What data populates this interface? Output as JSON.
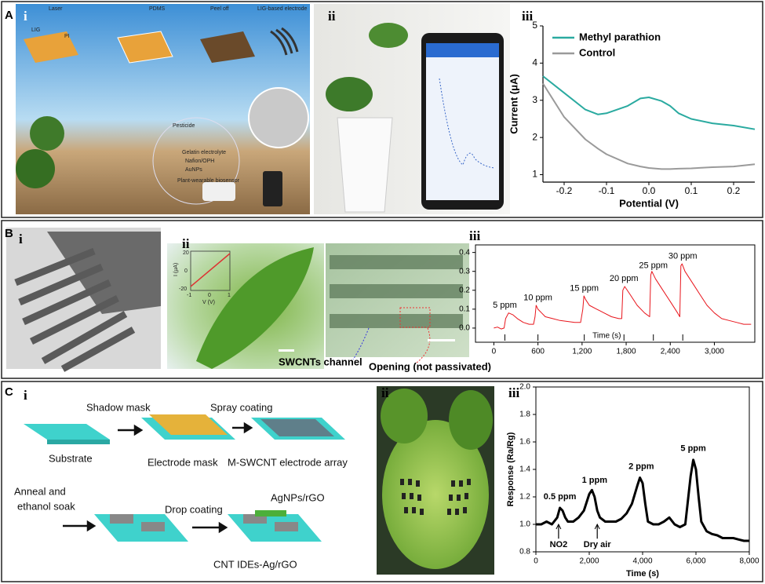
{
  "figure": {
    "panels": [
      {
        "label": "A",
        "subs": [
          "i",
          "ii",
          "iii"
        ]
      },
      {
        "label": "B",
        "subs": [
          "i",
          "ii",
          "iii"
        ]
      },
      {
        "label": "C",
        "subs": [
          "i",
          "ii",
          "iii"
        ]
      }
    ],
    "a_i": [
      "Laser",
      "PDMS",
      "Peel off",
      "LIG-based electrode",
      "LIG",
      "PI",
      "Pesticide",
      "Gelatin electrolyte",
      "Nafion/OPH",
      "AuNPs",
      "Plant-wearable biosensor"
    ],
    "b_ii": {
      "inset": {
        "y_ticks": [
          "20",
          "0",
          "-20"
        ],
        "x_ticks": [
          "-1",
          "0",
          "1"
        ],
        "ylabel": "I (μA)",
        "xlabel": "V (V)"
      },
      "labels": [
        "SWCNTs channel",
        "Opening (not passivated)"
      ]
    },
    "c_i": [
      "Shadow mask",
      "Spray coating",
      "Substrate",
      "Electrode mask",
      "M-SWCNT electrode array",
      "Anneal and",
      "ethanol soak",
      "Drop coating",
      "AgNPs/rGO",
      "CNT IDEs-Ag/rGO"
    ]
  },
  "chart_data": [
    {
      "type": "line",
      "xlabel": "Potential (V)",
      "ylabel": "Current (μA)",
      "x": [
        -0.25,
        -0.2,
        -0.15,
        -0.12,
        -0.1,
        -0.05,
        -0.02,
        0,
        0.03,
        0.05,
        0.07,
        0.1,
        0.15,
        0.2,
        0.25
      ],
      "series": [
        {
          "name": "Methyl parathion",
          "color": "#2aaaa0",
          "values": [
            3.65,
            3.2,
            2.75,
            2.62,
            2.65,
            2.85,
            3.05,
            3.08,
            2.98,
            2.85,
            2.65,
            2.5,
            2.38,
            2.32,
            2.22
          ]
        },
        {
          "name": "Control",
          "color": "#9a9a9a",
          "values": [
            3.45,
            2.55,
            1.95,
            1.7,
            1.55,
            1.3,
            1.22,
            1.18,
            1.15,
            1.15,
            1.16,
            1.17,
            1.2,
            1.22,
            1.28
          ]
        }
      ],
      "xlim": [
        -0.25,
        0.25
      ],
      "xticks": [
        -0.2,
        -0.1,
        {
          "value": 0,
          "label": "0.0"
        },
        0.1,
        0.2
      ],
      "ylim": [
        0.8,
        5
      ],
      "yticks": [
        1,
        2,
        3,
        4,
        5
      ],
      "legend": "upper left"
    },
    {
      "type": "line",
      "xlabel": "Time (s)",
      "x": [
        0,
        50,
        100,
        140,
        160,
        200,
        260,
        320,
        400,
        480,
        540,
        560,
        575,
        600,
        650,
        700,
        800,
        900,
        1000,
        1100,
        1180,
        1210,
        1225,
        1250,
        1300,
        1400,
        1500,
        1600,
        1700,
        1740,
        1755,
        1780,
        1850,
        1950,
        2050,
        2120,
        2135,
        2150,
        2200,
        2300,
        2400,
        2500,
        2530,
        2545,
        2560,
        2600,
        2700,
        2800,
        2900,
        3000,
        3100,
        3200,
        3300,
        3400,
        3500
      ],
      "series": [
        {
          "color": "#e8141b",
          "values": [
            0,
            0.005,
            -0.005,
            0,
            0.05,
            0.08,
            0.07,
            0.05,
            0.03,
            0.02,
            0.02,
            0.06,
            0.12,
            0.1,
            0.08,
            0.06,
            0.05,
            0.04,
            0.035,
            0.03,
            0.03,
            0.1,
            0.17,
            0.15,
            0.12,
            0.1,
            0.08,
            0.06,
            0.05,
            0.05,
            0.2,
            0.22,
            0.18,
            0.12,
            0.08,
            0.06,
            0.28,
            0.3,
            0.26,
            0.2,
            0.14,
            0.08,
            0.06,
            0.33,
            0.34,
            0.3,
            0.24,
            0.18,
            0.12,
            0.08,
            0.05,
            0.04,
            0.03,
            0.02,
            0.02
          ]
        }
      ],
      "xlim": [
        -250,
        3550
      ],
      "xticks": [
        0,
        600,
        {
          "value": 1200,
          "label": "1,200"
        },
        {
          "value": 1800,
          "label": "1,800"
        },
        {
          "value": 2400,
          "label": "2,400"
        },
        {
          "value": 3000,
          "label": "3,000"
        }
      ],
      "ylim": [
        -0.075,
        0.44
      ],
      "yticks": [
        {
          "value": 0,
          "label": "0.0"
        },
        0.1,
        0.2,
        0.3,
        0.4
      ],
      "annotations": [
        {
          "text": "5 ppm",
          "x": 150,
          "y": 0.12
        },
        {
          "text": "10 ppm",
          "x": 600,
          "y": 0.16
        },
        {
          "text": "15 ppm",
          "x": 1230,
          "y": 0.21
        },
        {
          "text": "20 ppm",
          "x": 1770,
          "y": 0.26
        },
        {
          "text": "25 ppm",
          "x": 2170,
          "y": 0.33
        },
        {
          "text": "30 ppm",
          "x": 2570,
          "y": 0.38
        }
      ]
    },
    {
      "type": "line",
      "xlabel": "Time (s)",
      "ylabel": "Response (Ra/Rg)",
      "x": [
        0,
        200,
        400,
        600,
        800,
        900,
        1000,
        1100,
        1200,
        1400,
        1600,
        1800,
        2000,
        2100,
        2200,
        2300,
        2400,
        2600,
        2800,
        3000,
        3200,
        3400,
        3600,
        3800,
        3900,
        4000,
        4100,
        4200,
        4400,
        4600,
        4800,
        5000,
        5200,
        5400,
        5600,
        5800,
        5900,
        6000,
        6100,
        6200,
        6400,
        6600,
        6800,
        7000,
        7200,
        7400,
        7600,
        7800,
        8000
      ],
      "series": [
        {
          "color": "#000000",
          "values": [
            1.0,
            1.0,
            1.02,
            1.0,
            1.05,
            1.12,
            1.1,
            1.05,
            1.02,
            1.02,
            1.05,
            1.1,
            1.22,
            1.25,
            1.2,
            1.1,
            1.05,
            1.02,
            1.02,
            1.02,
            1.04,
            1.08,
            1.15,
            1.28,
            1.34,
            1.3,
            1.15,
            1.02,
            1.0,
            1.0,
            1.02,
            1.05,
            1.0,
            0.98,
            1.0,
            1.35,
            1.47,
            1.4,
            1.2,
            1.02,
            0.95,
            0.93,
            0.92,
            0.9,
            0.9,
            0.9,
            0.89,
            0.88,
            0.88
          ]
        }
      ],
      "xlim": [
        0,
        8000
      ],
      "xticks": [
        0,
        {
          "value": 2000,
          "label": "2,000"
        },
        {
          "value": 4000,
          "label": "4,000"
        },
        {
          "value": 6000,
          "label": "6,000"
        },
        {
          "value": 8000,
          "label": "8,000"
        }
      ],
      "ylim": [
        0.8,
        2.0
      ],
      "yticks": [
        0.8,
        {
          "value": 1,
          "label": "1.0"
        },
        1.2,
        1.4,
        1.6,
        1.8,
        {
          "value": 2,
          "label": "2.0"
        }
      ],
      "annotations": [
        {
          "text": "0.5 ppm",
          "x": 900,
          "y": 1.2
        },
        {
          "text": "1 ppm",
          "x": 2200,
          "y": 1.32
        },
        {
          "text": "2 ppm",
          "x": 3950,
          "y": 1.42
        },
        {
          "text": "5 ppm",
          "x": 5900,
          "y": 1.55
        },
        {
          "text": "NO2",
          "x": 850,
          "y": 0.85
        },
        {
          "text": "Dry air",
          "x": 2300,
          "y": 0.85
        }
      ]
    }
  ]
}
